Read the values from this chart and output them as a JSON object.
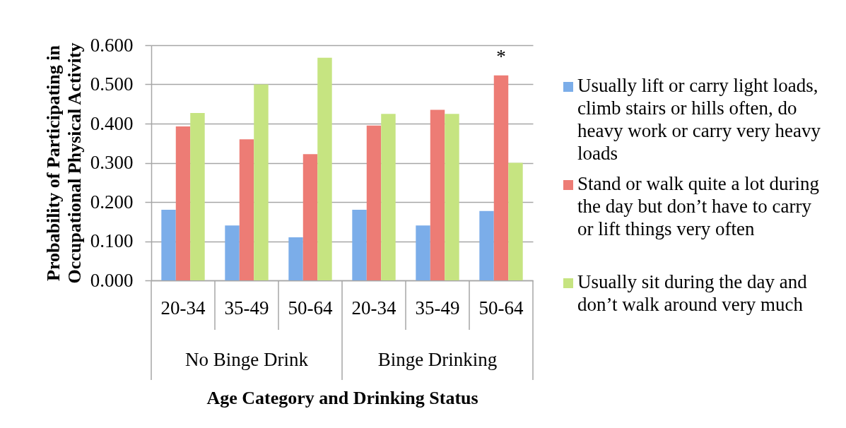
{
  "chart_data": {
    "type": "bar",
    "categories": [
      "20-34",
      "35-49",
      "50-64",
      "20-34",
      "35-49",
      "50-64"
    ],
    "series": [
      {
        "name": "Usually lift or carry light loads, climb stairs or hills often, do heavy work or carry very heavy loads",
        "color": "#7bade9",
        "values": [
          0.18,
          0.14,
          0.11,
          0.18,
          0.14,
          0.177
        ]
      },
      {
        "name": "Stand or walk quite a lot during the day but don’t have to carry or lift things very often",
        "color": "#ed7c75",
        "values": [
          0.393,
          0.36,
          0.322,
          0.395,
          0.435,
          0.523
        ]
      },
      {
        "name": "Usually sit during the day and don’t walk around very much",
        "color": "#c6e481",
        "values": [
          0.427,
          0.5,
          0.568,
          0.425,
          0.425,
          0.3
        ]
      }
    ],
    "ylabel": "Probability of Participating in Occupational Physical Activity",
    "xlabel": "Age Category and Drinking Status",
    "ylim": [
      0,
      0.6
    ],
    "yticks": [
      {
        "value": 0,
        "label": "0.000"
      },
      {
        "value": 0.1,
        "label": "0.100"
      },
      {
        "value": 0.2,
        "label": "0.200"
      },
      {
        "value": 0.3,
        "label": "0.300"
      },
      {
        "value": 0.4,
        "label": "0.400"
      },
      {
        "value": 0.5,
        "label": "0.500"
      },
      {
        "value": 0.6,
        "label": "0.600"
      }
    ],
    "grid": "y",
    "legend": "right",
    "annotations": [
      "*",
      "No Binge Drink",
      "Binge Drinking"
    ]
  }
}
